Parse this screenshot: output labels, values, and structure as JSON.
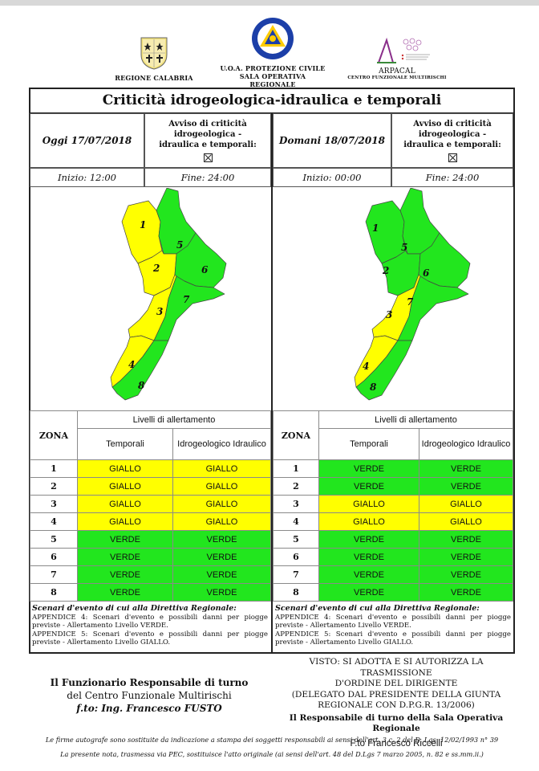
{
  "header": {
    "left_logo_text": "REGIONE CALABRIA",
    "center_logo_line1": "U.O.A. PROTEZIONE CIVILE",
    "center_logo_line2": "SALA OPERATIVA REGIONALE",
    "right_logo_line1": "ARPACAL",
    "right_logo_line2": "CENTRO FUNZIONALE MULTIRISCHI"
  },
  "title": "Criticità idrogeologica-idraulica e temporali",
  "today": {
    "date": "Oggi 17/07/2018",
    "avviso": "Avviso di criticità idrogeologica - idraulica e temporali:",
    "inizio": "Inizio: 12:00",
    "fine": "Fine: 24:00"
  },
  "tomorrow": {
    "date": "Domani 18/07/2018",
    "avviso": "Avviso di criticità idrogeologica - idraulica e temporali:",
    "inizio": "Inizio: 00:00",
    "fine": "Fine: 24:00"
  },
  "zone_labels": [
    "1",
    "2",
    "3",
    "4",
    "5",
    "6",
    "7",
    "8"
  ],
  "table": {
    "zona_header": "ZONA",
    "levels_header": "Livelli di allertamento",
    "col_temporali": "Temporali",
    "col_idro": "Idrogeologico Idraulico",
    "today_rows": [
      {
        "zona": "1",
        "temporali": "GIALLO",
        "idro": "GIALLO"
      },
      {
        "zona": "2",
        "temporali": "GIALLO",
        "idro": "GIALLO"
      },
      {
        "zona": "3",
        "temporali": "GIALLO",
        "idro": "GIALLO"
      },
      {
        "zona": "4",
        "temporali": "GIALLO",
        "idro": "GIALLO"
      },
      {
        "zona": "5",
        "temporali": "VERDE",
        "idro": "VERDE"
      },
      {
        "zona": "6",
        "temporali": "VERDE",
        "idro": "VERDE"
      },
      {
        "zona": "7",
        "temporali": "VERDE",
        "idro": "VERDE"
      },
      {
        "zona": "8",
        "temporali": "VERDE",
        "idro": "VERDE"
      }
    ],
    "tomorrow_rows": [
      {
        "zona": "1",
        "temporali": "VERDE",
        "idro": "VERDE"
      },
      {
        "zona": "2",
        "temporali": "VERDE",
        "idro": "VERDE"
      },
      {
        "zona": "3",
        "temporali": "GIALLO",
        "idro": "GIALLO"
      },
      {
        "zona": "4",
        "temporali": "GIALLO",
        "idro": "GIALLO"
      },
      {
        "zona": "5",
        "temporali": "VERDE",
        "idro": "VERDE"
      },
      {
        "zona": "6",
        "temporali": "VERDE",
        "idro": "VERDE"
      },
      {
        "zona": "7",
        "temporali": "VERDE",
        "idro": "VERDE"
      },
      {
        "zona": "8",
        "temporali": "VERDE",
        "idro": "VERDE"
      }
    ]
  },
  "colors": {
    "giallo": "#ffff00",
    "verde": "#22e61e"
  },
  "scenario": {
    "title": "Scenari d'evento di cui alla Direttiva Regionale:",
    "app4": "APPENDICE 4: Scenari d'evento e possibili danni per piogge previste - Allertamento Livello VERDE.",
    "app5": "APPENDICE 5: Scenari d'evento e possibili danni per piogge previste - Allertamento Livello GIALLO."
  },
  "footer": {
    "left_line1": "Il Funzionario Responsabile di turno",
    "left_line2": "del Centro Funzionale Multirischi",
    "left_line3": "f.to: Ing. Francesco FUSTO",
    "right_line1": "VISTO: SI ADOTTA E SI AUTORIZZA LA TRASMISSIONE",
    "right_line2": "D'ORDINE DEL DIRIGENTE",
    "right_line3": "(DELEGATO DAL PRESIDENTE DELLA GIUNTA",
    "right_line4": "REGIONALE CON D.P.G.R. 13/2006)",
    "right_line5": "Il Responsabile di turno della Sala Operativa Regionale",
    "right_line6": "F.to Francesco Riccelli",
    "note1": "Le firme autografe sono sostituite da indicazione a stampa dei soggetti responsabili ai sensi dell'art. 3 c. 2 del D. Lgs. 12/02/1993 n° 39",
    "note2": "La presente nota, trasmessa via PEC, sostituisce l'atto originale (ai sensi dell'art. 48 del D.Lgs 7 marzo 2005, n. 82 e ss.mm.ii.)"
  }
}
